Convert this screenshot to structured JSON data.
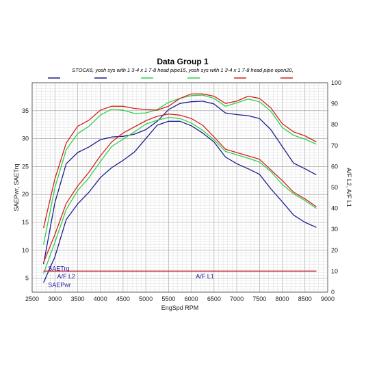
{
  "chart_data": {
    "type": "line",
    "title": "Data Group 1",
    "subtitle": "STOCK6, yosh sys with 1 3-4 x 1 7-8 head pipe15, yosh sys with 1 3-4 x 1 7-8 head pipe open20,",
    "xlabel": "EngSpd  RPM",
    "ylabel_left": "SAEPwr, SAETrq",
    "ylabel_right": "A/F L2, A/F L1",
    "xlim": [
      2500,
      9000
    ],
    "ylim_left": [
      2.5,
      40
    ],
    "ylim_right": [
      0,
      100
    ],
    "x_ticks": [
      "2500",
      "3000",
      "3500",
      "4000",
      "4500",
      "5000",
      "5500",
      "6000",
      "6500",
      "7000",
      "7500",
      "8000",
      "8500",
      "9000"
    ],
    "y_left_ticks": [
      "5",
      "10",
      "15",
      "20",
      "25",
      "30",
      "35"
    ],
    "y_right_ticks": [
      "0",
      "10",
      "20",
      "30",
      "40",
      "50",
      "60",
      "70",
      "80",
      "90",
      "100"
    ],
    "grid": true,
    "annotations": [
      {
        "text": "SAETrq",
        "x": 2850,
        "y": 6.7
      },
      {
        "text": "SAEPwr",
        "x": 2850,
        "y": 3.8
      },
      {
        "text": "A/F L2",
        "x": 3050,
        "y": 5.3
      },
      {
        "text": "A/F L1",
        "x": 6100,
        "y": 5.3
      }
    ],
    "series": [
      {
        "color": "#1c1c8c",
        "axis": "left",
        "x": [
          2750,
          3000,
          3250,
          3500,
          3750,
          4000,
          4250,
          4500,
          4750,
          5000,
          5250,
          5500,
          5750,
          6000,
          6250,
          6500,
          6750,
          7000,
          7250,
          7500,
          7750,
          8000,
          8250,
          8500,
          8750
        ],
        "values": [
          7.5,
          18.5,
          25.5,
          27.5,
          28.5,
          29.8,
          30.3,
          30.4,
          30.8,
          31.6,
          33.1,
          35.2,
          36.3,
          36.6,
          36.7,
          36.2,
          34.6,
          34.3,
          34.1,
          33.6,
          31.6,
          28.6,
          25.6,
          24.6,
          23.5
        ]
      },
      {
        "color": "#2ed04a",
        "axis": "left",
        "x": [
          2750,
          3000,
          3250,
          3500,
          3750,
          4000,
          4250,
          4500,
          4750,
          5000,
          5250,
          5500,
          5750,
          6000,
          6250,
          6500,
          6750,
          7000,
          7250,
          7500,
          7750,
          8000,
          8250,
          8500,
          8750
        ],
        "values": [
          11.0,
          21.2,
          28.0,
          30.9,
          32.2,
          34.2,
          35.3,
          35.1,
          34.5,
          34.6,
          35.2,
          36.5,
          37.2,
          37.7,
          37.8,
          37.2,
          35.8,
          36.4,
          37.1,
          36.6,
          34.9,
          32.0,
          30.6,
          29.9,
          29.0
        ]
      },
      {
        "color": "#d42020",
        "axis": "left",
        "x": [
          2750,
          3000,
          3250,
          3500,
          3750,
          4000,
          4250,
          4500,
          4750,
          5000,
          5250,
          5500,
          5750,
          6000,
          6250,
          6500,
          6750,
          7000,
          7250,
          7500,
          7750,
          8000,
          8250,
          8500,
          8750
        ],
        "values": [
          14.0,
          22.8,
          29.2,
          32.2,
          33.3,
          35.1,
          35.8,
          35.8,
          35.4,
          35.2,
          35.1,
          35.8,
          37.2,
          38.0,
          38.0,
          37.6,
          36.3,
          36.7,
          37.6,
          37.2,
          35.5,
          32.7,
          31.2,
          30.5,
          29.4
        ]
      },
      {
        "color": "#1c1c8c",
        "axis": "left",
        "x": [
          2750,
          3000,
          3250,
          3500,
          3750,
          4000,
          4250,
          4500,
          4750,
          5000,
          5250,
          5500,
          5750,
          6000,
          6250,
          6500,
          6750,
          7000,
          7250,
          7500,
          7750,
          8000,
          8250,
          8500,
          8750
        ],
        "values": [
          4.2,
          8.8,
          15.5,
          18.3,
          20.4,
          23.0,
          24.8,
          26.1,
          27.6,
          30.0,
          32.4,
          33.1,
          33.1,
          32.3,
          31.0,
          29.4,
          26.7,
          25.5,
          24.6,
          23.6,
          21.0,
          18.7,
          16.3,
          15.0,
          14.1
        ]
      },
      {
        "color": "#2ed04a",
        "axis": "left",
        "x": [
          2750,
          3000,
          3250,
          3500,
          3750,
          4000,
          4250,
          4500,
          4750,
          5000,
          5250,
          5500,
          5750,
          6000,
          6250,
          6500,
          6750,
          7000,
          7250,
          7500,
          7750,
          8000,
          8250,
          8500,
          8750
        ],
        "values": [
          5.8,
          11.4,
          17.3,
          20.7,
          23.0,
          25.9,
          28.6,
          29.9,
          31.2,
          32.6,
          33.3,
          33.8,
          33.6,
          32.8,
          31.5,
          29.8,
          27.7,
          27.1,
          26.5,
          25.8,
          24.1,
          21.8,
          20.1,
          18.9,
          17.5
        ]
      },
      {
        "color": "#d42020",
        "axis": "left",
        "x": [
          2750,
          3000,
          3250,
          3500,
          3750,
          4000,
          4250,
          4500,
          4750,
          5000,
          5250,
          5500,
          5750,
          6000,
          6250,
          6500,
          6750,
          7000,
          7250,
          7500,
          7750,
          8000,
          8250,
          8500,
          8750
        ],
        "values": [
          7.8,
          12.8,
          18.4,
          21.5,
          24.0,
          26.9,
          29.4,
          31.0,
          32.1,
          33.2,
          34.0,
          34.4,
          34.2,
          33.6,
          32.4,
          30.3,
          28.1,
          27.5,
          26.9,
          26.3,
          24.4,
          22.5,
          20.4,
          19.2,
          17.8
        ]
      },
      {
        "color": "#1c1c8c",
        "axis": "right",
        "x": [
          2750,
          8750
        ],
        "values": [
          10,
          10
        ]
      },
      {
        "color": "#d42020",
        "axis": "right",
        "x": [
          2750,
          8750
        ],
        "values": [
          10,
          10
        ]
      }
    ],
    "legend_entries": [
      {
        "color": "#1c1c8c"
      },
      {
        "color": "#1c1c8c"
      },
      {
        "color": "#2ed04a"
      },
      {
        "color": "#2ed04a"
      },
      {
        "color": "#d42020"
      },
      {
        "color": "#d42020"
      }
    ]
  }
}
